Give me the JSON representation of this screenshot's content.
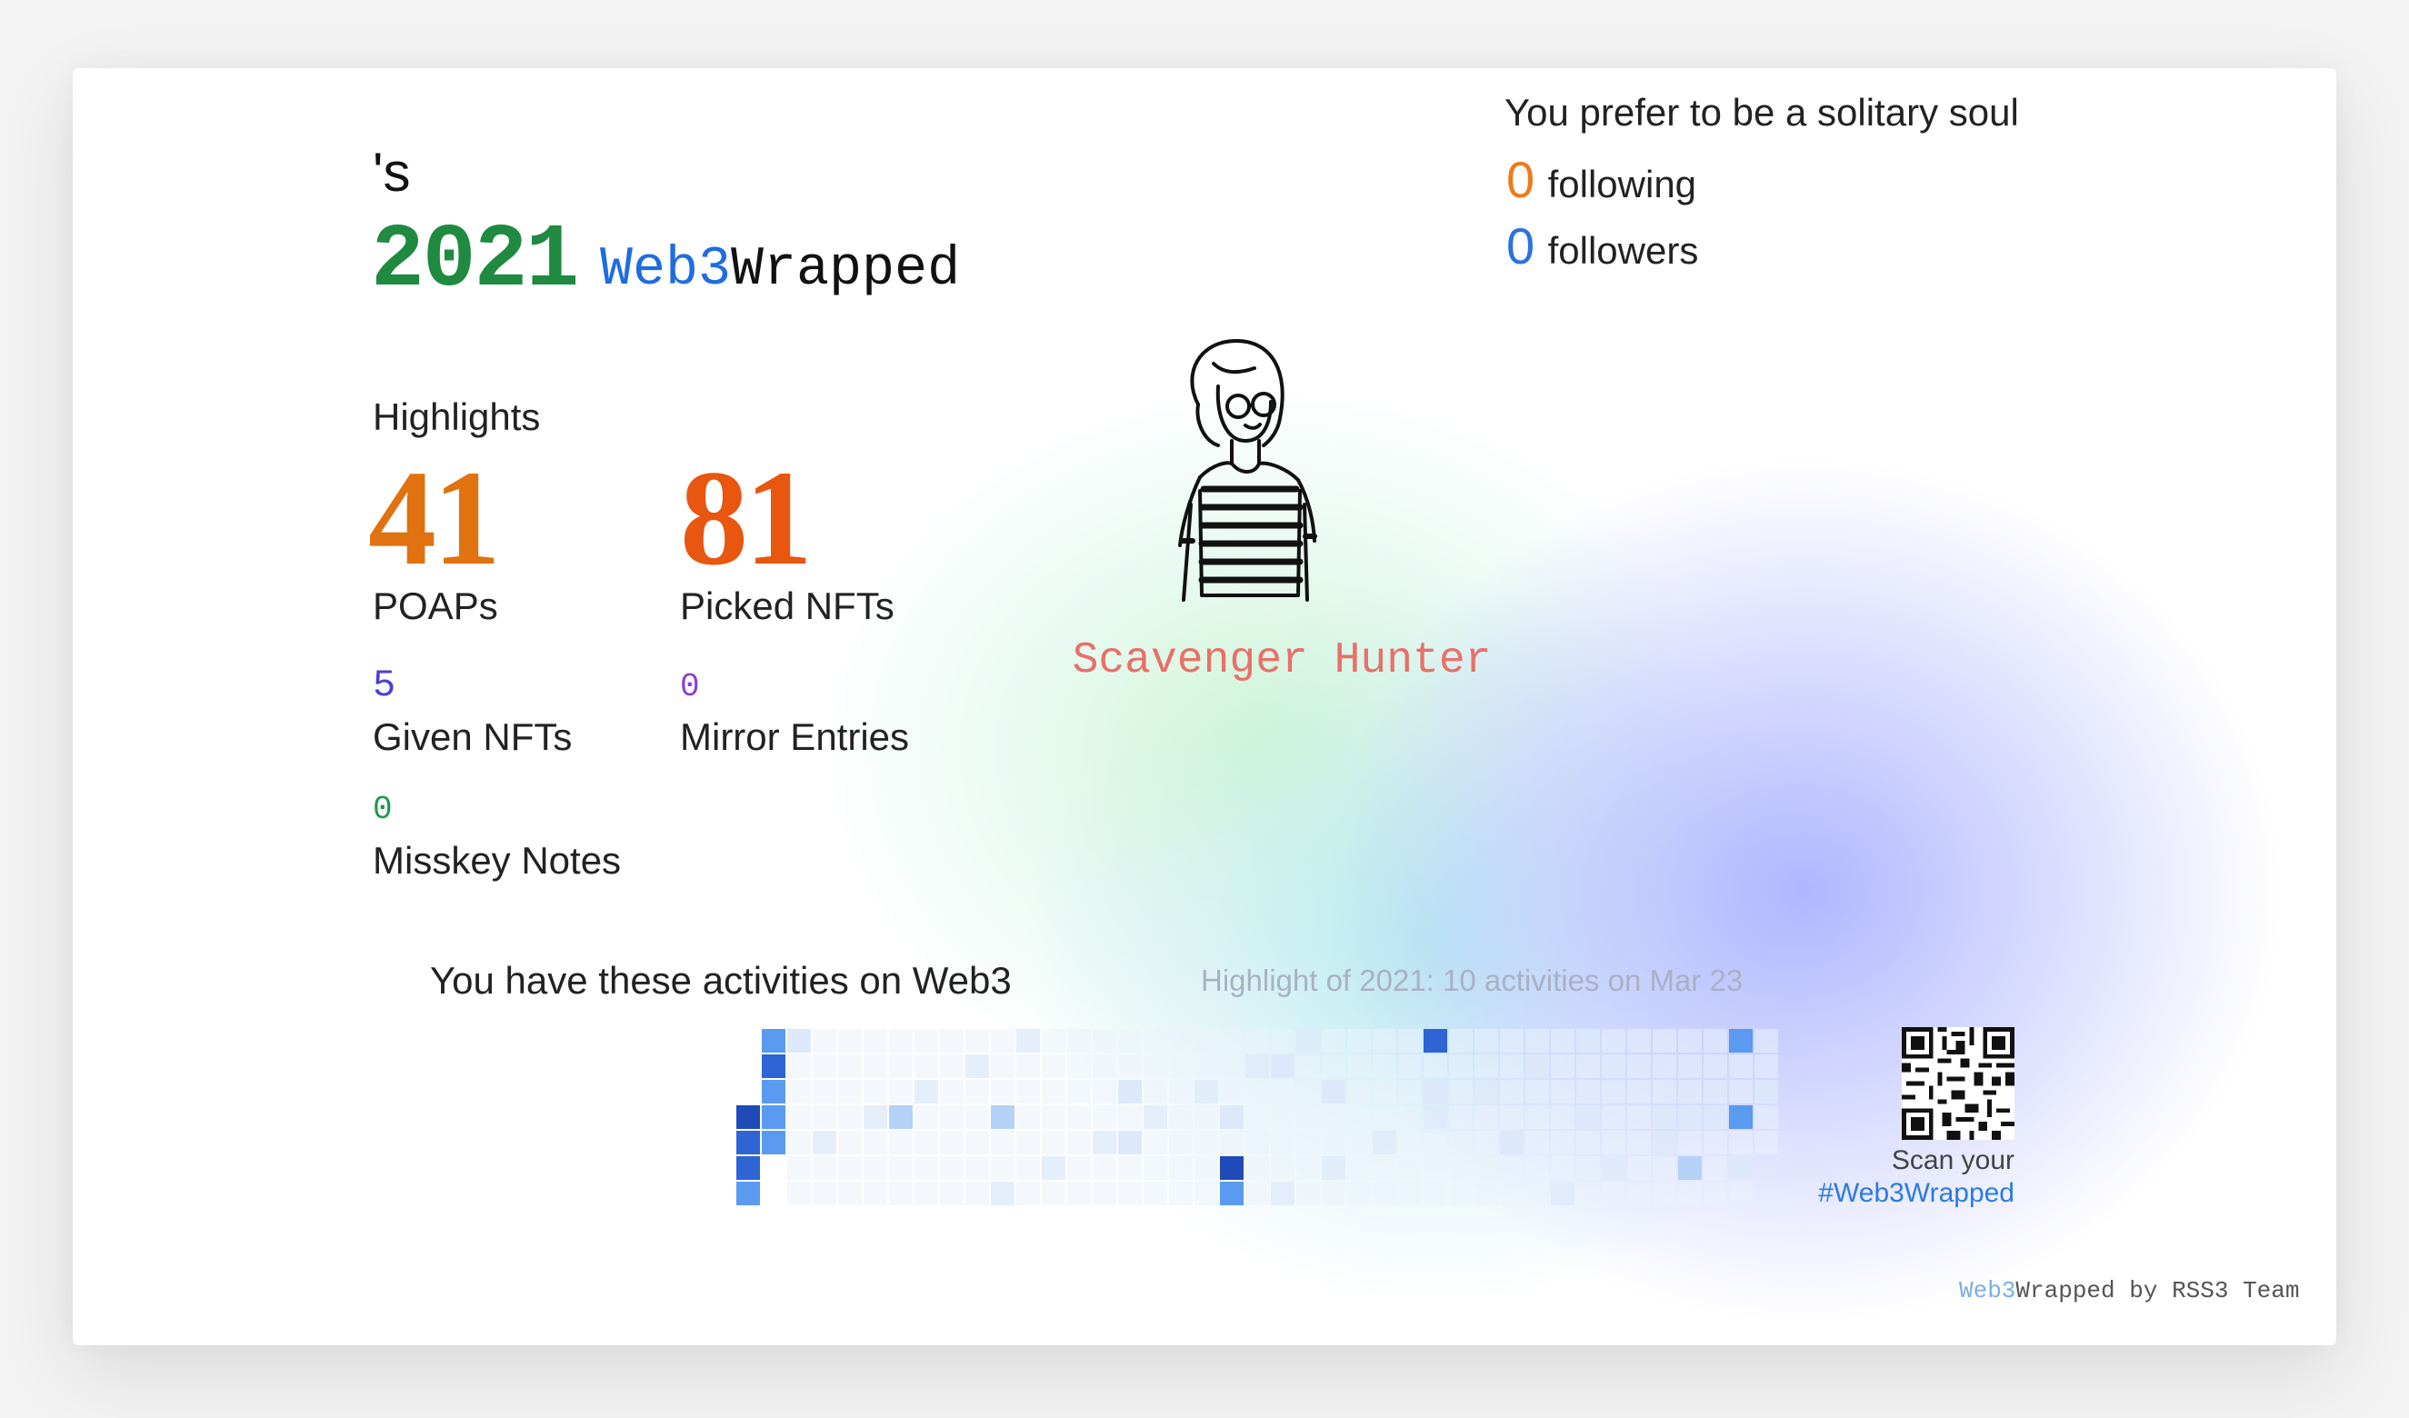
{
  "header": {
    "name_suffix": "'s",
    "year": "2021",
    "brand_web3": "Web3",
    "brand_wrapped": "Wrapped"
  },
  "highlights": {
    "title": "Highlights",
    "poaps": {
      "value": "41",
      "label": "POAPs"
    },
    "picked_nfts": {
      "value": "81",
      "label": "Picked NFTs"
    },
    "given_nfts": {
      "value": "5",
      "label": "Given NFTs"
    },
    "mirror_entries": {
      "value": "0",
      "label": "Mirror Entries"
    },
    "misskey_notes": {
      "value": "0",
      "label": "Misskey Notes"
    }
  },
  "social": {
    "headline": "You prefer to be a solitary soul",
    "following": {
      "value": "0",
      "label": "following"
    },
    "followers": {
      "value": "0",
      "label": "followers"
    }
  },
  "persona": {
    "title": "Scavenger Hunter",
    "icon": "striped-shirt-person-illustration"
  },
  "activities": {
    "title": "You have these activities on Web3",
    "highlight": "Highlight of 2021: 10 activities on Mar 23",
    "colors": [
      "#ffffff",
      "#f1f6fd",
      "#dde9fb",
      "#b6d1f7",
      "#5a9af0",
      "#2e64d4",
      "#1f4bb8"
    ]
  },
  "share": {
    "qr_icon": "qr-code-icon",
    "scan_line1": "Scan your",
    "scan_line2": "#Web3Wrapped"
  },
  "footer": {
    "web3": "Web3",
    "wrapped_by": "Wrapped by",
    "team": "RSS3 Team"
  },
  "colors": {
    "year": "#1f8a40",
    "brand_blue": "#1e6de0",
    "poaps": "#e0720f",
    "picked": "#e8560f",
    "given": "#4a3fd4",
    "mirror": "#8a3fd4",
    "misskey": "#1f9a50",
    "following": "#f07a1a",
    "followers": "#2a72e0",
    "persona": "#e8706a"
  }
}
